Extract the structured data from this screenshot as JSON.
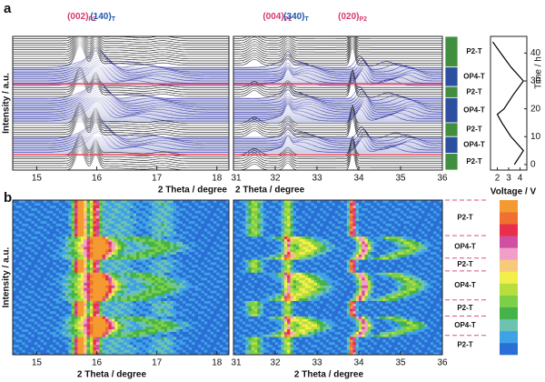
{
  "panel_labels": [
    "a",
    "b"
  ],
  "phases": [
    {
      "label": "P2-T",
      "from": 35,
      "to": 46,
      "kind": "P2"
    },
    {
      "label": "OP4-T",
      "from": 28,
      "to": 35,
      "kind": "OP4"
    },
    {
      "label": "P2-T",
      "from": 24,
      "to": 28,
      "kind": "P2"
    },
    {
      "label": "OP4-T",
      "from": 15,
      "to": 24,
      "kind": "OP4"
    },
    {
      "label": "P2-T",
      "from": 10,
      "to": 15,
      "kind": "P2"
    },
    {
      "label": "OP4-T",
      "from": 4,
      "to": 10,
      "kind": "OP4"
    },
    {
      "label": "P2-T",
      "from": -2,
      "to": 4,
      "kind": "P2"
    }
  ],
  "phase_colors": {
    "P2": "#3f8f3f",
    "OP4": "#2c4fa0"
  },
  "highlight_times": [
    3.5,
    29
  ],
  "highlight_color": "#e8405a",
  "colorbar": [
    "#2a6fd6",
    "#3fa2e6",
    "#6cc3b2",
    "#45b34a",
    "#7dcf4a",
    "#b7de3c",
    "#f2ee4a",
    "#f7c97a",
    "#f0a0c8",
    "#d04fa0",
    "#e8304a",
    "#f07030",
    "#f59a30"
  ],
  "chart_data": [
    {
      "type": "waterfall",
      "xlim": [
        14.6,
        18.2
      ],
      "xticks": [
        15,
        16,
        17,
        18
      ],
      "xlabel": "2 Theta / degree",
      "ylabel": "Intensity / a.u.",
      "peak_labels": [
        {
          "text": "(002)",
          "sub": "P2",
          "x": 15.75,
          "color": "#d63a6e"
        },
        {
          "text": "(140)",
          "sub": "T",
          "x": 16.1,
          "color": "#2255aa"
        }
      ]
    },
    {
      "type": "waterfall",
      "xlim": [
        31,
        36
      ],
      "xticks": [
        31,
        32,
        33,
        34,
        35,
        36
      ],
      "xlabel": "2 Theta / degree",
      "peak_labels": [
        {
          "text": "(004)",
          "sub": "P2",
          "x": 32.05,
          "color": "#d63a6e"
        },
        {
          "text": "(340)",
          "sub": "T",
          "x": 32.5,
          "color": "#2255aa"
        },
        {
          "text": "(020)",
          "sub": "P2",
          "x": 33.85,
          "color": "#d63a6e"
        }
      ]
    },
    {
      "type": "line",
      "xlabel": "Voltage / V",
      "ylabel": "Time / h",
      "xlim": [
        1.4,
        4.6
      ],
      "xticks": [
        2,
        3,
        4
      ],
      "ylim": [
        -2,
        46
      ],
      "yticks": [
        0,
        10,
        20,
        30,
        40
      ],
      "color": "#000000",
      "x": [
        3.5,
        4.3,
        3.2,
        2.4,
        2.0,
        2.6,
        3.4,
        4.3,
        3.2,
        2.3,
        1.6
      ],
      "y": [
        0,
        5,
        10,
        15,
        18,
        20,
        25,
        30,
        35,
        40,
        44
      ]
    },
    {
      "type": "contour",
      "xlim": [
        14.6,
        18.2
      ],
      "xticks": [
        15,
        16,
        17,
        18
      ],
      "xlabel": "2 Theta / degree",
      "ylabel": "Intensity / a.u."
    },
    {
      "type": "contour",
      "xlim": [
        31,
        36
      ],
      "xticks": [
        31,
        32,
        33,
        34,
        35,
        36
      ],
      "xlabel": "2 Theta / degree"
    }
  ]
}
